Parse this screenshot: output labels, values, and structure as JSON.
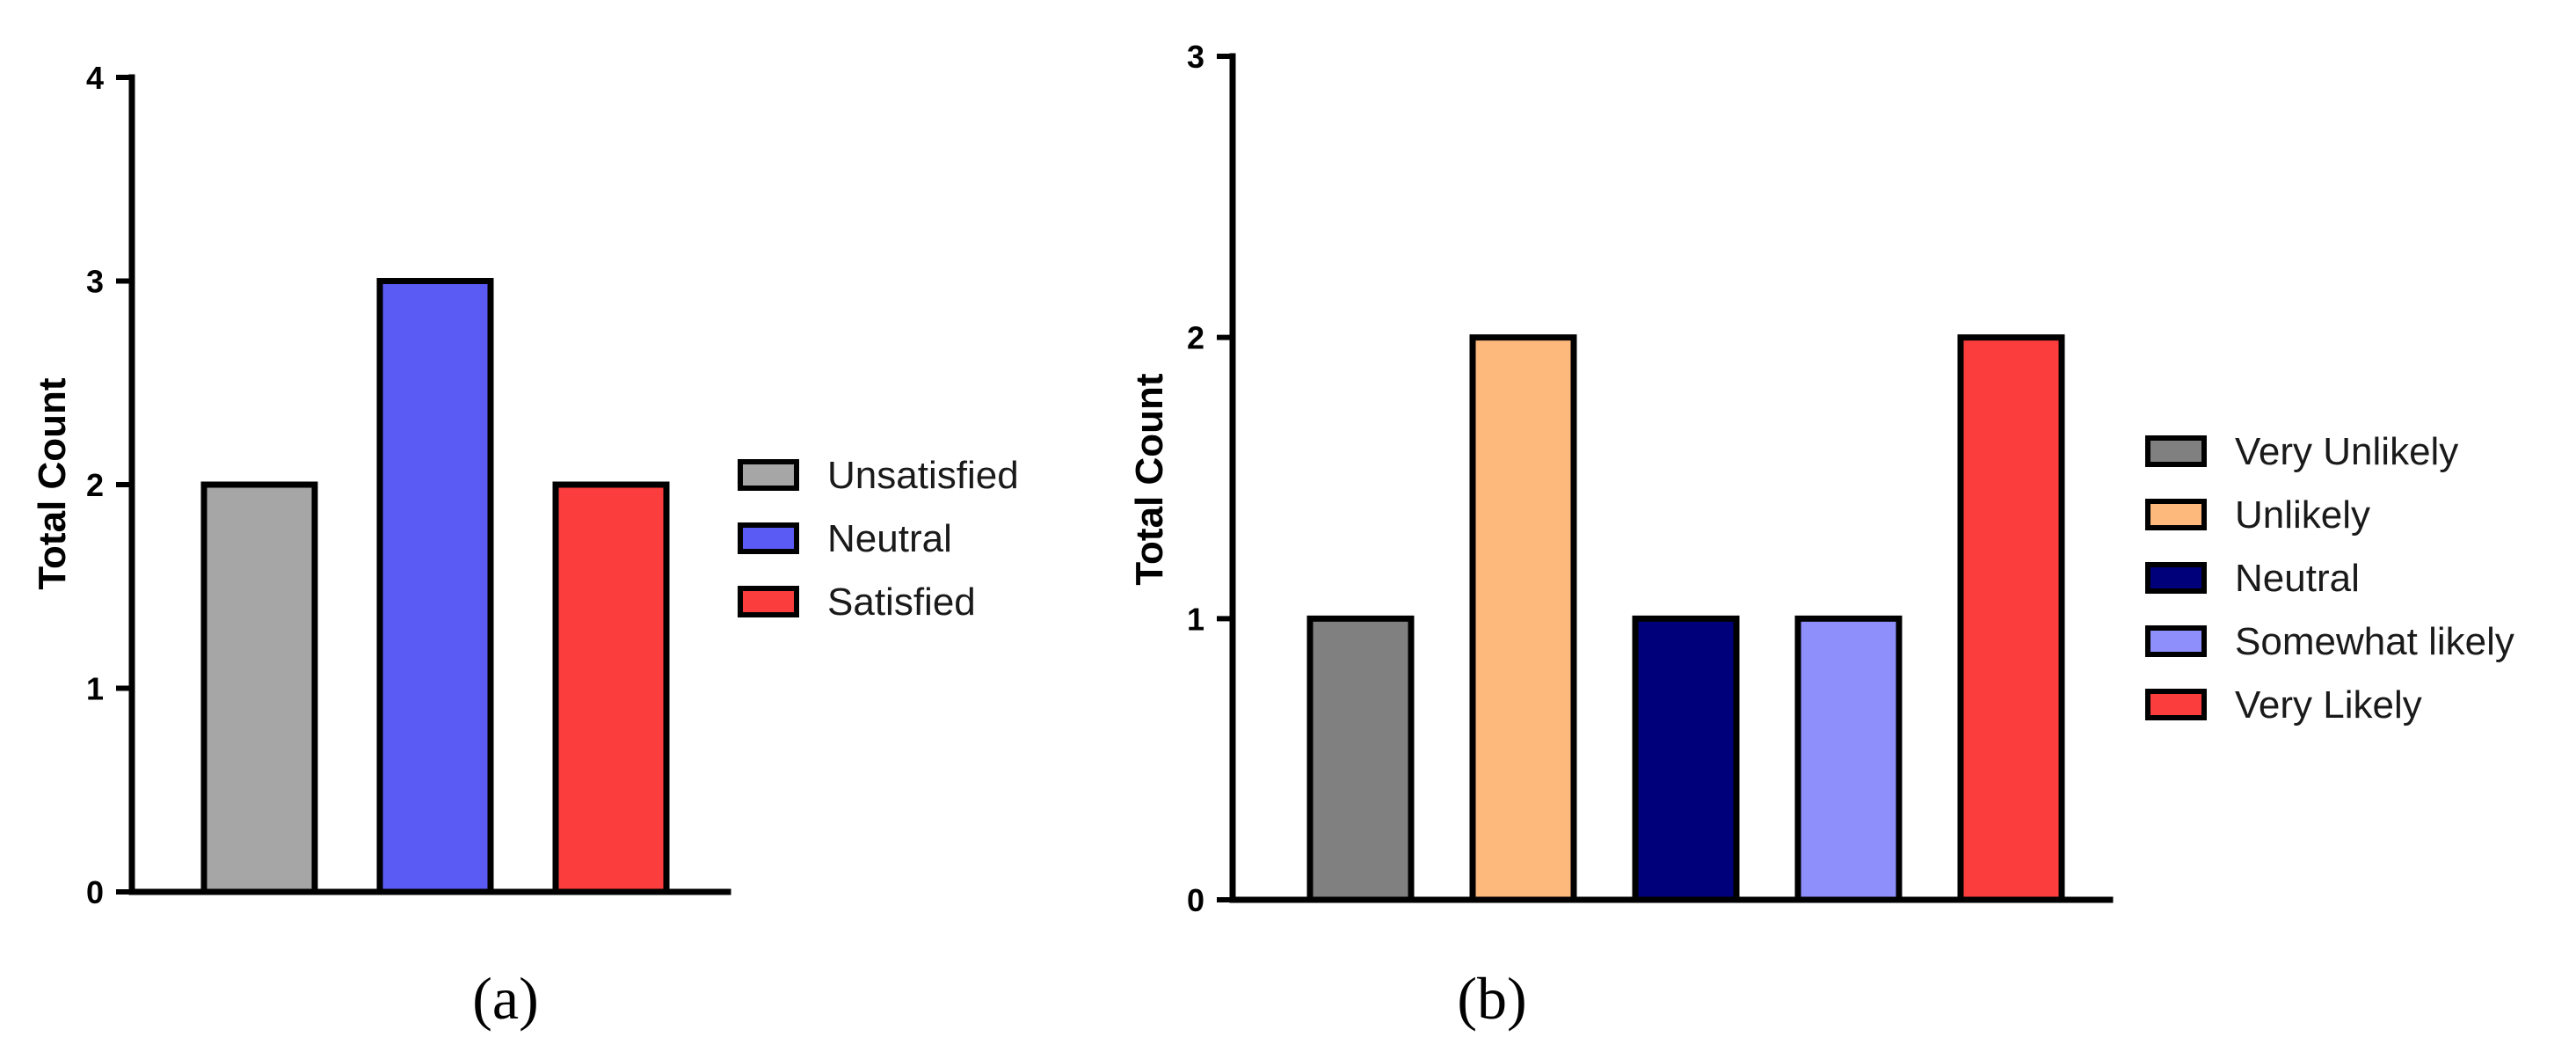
{
  "chart_data": [
    {
      "type": "bar",
      "panel_label": "(a)",
      "categories": [
        "Unsatisfied",
        "Neutral",
        "Satisfied"
      ],
      "values": [
        2,
        3,
        2
      ],
      "colors": [
        "#a6a6a6",
        "#5a5af5",
        "#fb3d3d"
      ],
      "title": "",
      "xlabel": "",
      "ylabel": "Total Count",
      "ylim": [
        0,
        4
      ],
      "yticks": [
        0,
        1,
        2,
        3,
        4
      ],
      "legend": [
        "Unsatisfied",
        "Neutral",
        "Satisfied"
      ],
      "legend_position": "right",
      "grid": false
    },
    {
      "type": "bar",
      "panel_label": "(b)",
      "categories": [
        "Very Unlikely",
        "Unlikely",
        "Neutral",
        "Somewhat likely",
        "Very Likely"
      ],
      "values": [
        1,
        2,
        1,
        1,
        2
      ],
      "colors": [
        "#808080",
        "#fdb87c",
        "#00007a",
        "#8f8ffb",
        "#fb3d3d"
      ],
      "title": "",
      "xlabel": "",
      "ylabel": "Total Count",
      "ylim": [
        0,
        3
      ],
      "yticks": [
        0,
        1,
        2,
        3
      ],
      "legend": [
        "Very Unlikely",
        "Unlikely",
        "Neutral",
        "Somewhat likely",
        "Very Likely"
      ],
      "legend_position": "right",
      "grid": false
    }
  ]
}
